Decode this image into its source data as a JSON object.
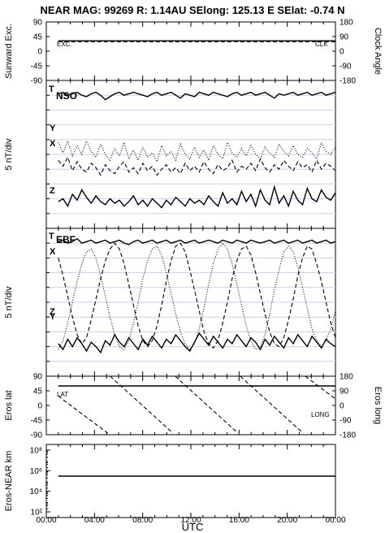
{
  "title": "NEAR MAG: 99269  R: 1.14AU  SElong: 125.13 E  SElat:   -0.74 N",
  "x_axis": {
    "label": "UTC",
    "ticks": [
      "00:00",
      "04:00",
      "08:00",
      "12:00",
      "16:00",
      "20:00",
      "00:00"
    ]
  },
  "chart_data": [
    {
      "id": "sunward",
      "type": "line",
      "ylabel": "Sunward Exc.",
      "ylabel_right": "Clock Angle",
      "yticks_left": [
        "90",
        "45",
        "0",
        "-45",
        "-90"
      ],
      "yticks_right": [
        "180",
        "90",
        "0",
        "-90",
        "-180"
      ],
      "ylim": [
        -90,
        90
      ],
      "series": [
        {
          "name": "EXC.",
          "style": "solid",
          "x": [
            1,
            24
          ],
          "values": [
            32,
            32
          ]
        },
        {
          "name": "CLK",
          "style": "dashed",
          "x": [
            1,
            24
          ],
          "values": [
            29,
            29
          ]
        }
      ]
    },
    {
      "id": "nso",
      "type": "line",
      "frame": "NSO",
      "ylabel": "5 nT/div",
      "series": [
        {
          "name": "T",
          "style": "solid",
          "x_start": 1,
          "x_end": 24,
          "values": [
            9.1,
            9.2,
            9.0,
            9.1,
            9.2,
            9.0,
            8.9,
            9.1,
            9.2,
            9.0,
            8.7,
            8.9,
            9.1,
            9.2,
            9.0,
            9.1,
            9.2,
            9.1,
            9.0,
            8.9,
            9.1,
            9.2,
            9.0,
            9.1,
            9.2,
            9.0,
            8.8,
            9.1,
            9.0,
            8.9,
            9.2,
            9.1,
            9.0,
            9.2,
            9.1,
            9.0,
            8.9,
            9.1,
            9.2,
            9.0,
            9.1,
            9.2,
            9.0,
            9.1,
            9.2,
            9.0,
            8.8,
            9.1,
            9.0,
            9.1,
            9.2,
            9.0,
            9.1,
            9.2,
            9.0,
            9.1,
            9.2,
            9.0,
            9.1,
            9.2
          ]
        },
        {
          "name": "Y",
          "style": "dotted",
          "x_start": 1,
          "x_end": 24,
          "values": [
            5.8,
            5.1,
            5.9,
            4.9,
            5.6,
            5.0,
            5.9,
            5.2,
            4.8,
            5.7,
            5.0,
            4.6,
            5.4,
            4.9,
            5.8,
            4.7,
            5.3,
            4.6,
            5.5,
            4.8,
            5.1,
            4.5,
            5.6,
            4.9,
            5.2,
            4.6,
            5.7,
            5.0,
            4.7,
            5.5,
            4.8,
            5.3,
            4.6,
            5.6,
            5.0,
            4.7,
            5.8,
            5.1,
            4.8,
            5.4,
            4.9,
            5.6,
            5.0,
            4.7,
            5.5,
            5.1,
            4.8,
            5.7,
            5.2,
            4.9,
            5.6,
            5.0,
            4.8,
            5.4,
            5.1,
            4.7,
            5.8,
            5.2,
            5.0,
            5.5
          ]
        },
        {
          "name": "X",
          "style": "dashed",
          "x_start": 1,
          "x_end": 24,
          "values": [
            4.6,
            4.2,
            4.8,
            3.9,
            4.5,
            4.0,
            3.8,
            4.4,
            4.1,
            3.6,
            4.3,
            3.9,
            3.7,
            4.2,
            4.5,
            3.8,
            4.1,
            3.7,
            4.4,
            3.9,
            4.2,
            3.6,
            4.0,
            4.3,
            3.8,
            4.1,
            3.7,
            4.4,
            3.9,
            4.2,
            3.8,
            4.5,
            4.0,
            3.7,
            4.3,
            3.9,
            4.1,
            4.6,
            3.8,
            4.2,
            4.0,
            4.4,
            3.9,
            4.7,
            4.1,
            3.8,
            4.3,
            4.0,
            4.6,
            4.2,
            3.9,
            4.5,
            4.1,
            4.3,
            3.8,
            4.6,
            4.0,
            4.4,
            4.2,
            3.9
          ]
        },
        {
          "name": "Z",
          "style": "solid",
          "x_start": 1,
          "x_end": 24,
          "values": [
            1.8,
            2.0,
            1.5,
            2.3,
            1.9,
            2.6,
            2.1,
            1.7,
            2.2,
            1.8,
            1.6,
            2.0,
            1.7,
            1.9,
            1.5,
            1.8,
            2.2,
            1.6,
            1.9,
            1.5,
            2.0,
            1.7,
            1.4,
            1.9,
            1.6,
            2.1,
            1.8,
            1.5,
            2.0,
            1.7,
            1.9,
            1.6,
            2.2,
            1.8,
            1.5,
            2.4,
            1.7,
            2.0,
            1.6,
            2.5,
            1.8,
            2.3,
            1.5,
            2.6,
            1.9,
            1.6,
            2.8,
            1.7,
            2.2,
            1.5,
            2.5,
            1.9,
            1.6,
            2.7,
            2.0,
            1.8,
            2.6,
            2.1,
            1.9,
            2.4
          ]
        }
      ]
    },
    {
      "id": "ebf",
      "type": "line",
      "frame": "EBF",
      "ylabel": "5 nT/div",
      "series": [
        {
          "name": "T",
          "style": "solid",
          "x_start": 1,
          "x_end": 24,
          "values": [
            9.1,
            9.2,
            9.0,
            9.1,
            9.3,
            9.0,
            9.1,
            9.2,
            9.0,
            9.1,
            9.2,
            9.0,
            9.1,
            9.2,
            9.0,
            8.9,
            9.1,
            9.2,
            9.0,
            9.1,
            9.2,
            9.0,
            9.1,
            9.2,
            9.0,
            9.1,
            9.2,
            9.0,
            9.1,
            9.2,
            9.0,
            9.1,
            9.2,
            9.1,
            9.0,
            9.2,
            9.1,
            9.0,
            9.2,
            9.1,
            9.0,
            9.2,
            9.1,
            9.0,
            9.1,
            9.2,
            9.0,
            9.1,
            9.2,
            9.0,
            9.1,
            9.2,
            9.0,
            9.1,
            9.2,
            9.0,
            9.1,
            9.2,
            9.0,
            9.1
          ]
        },
        {
          "name": "X",
          "style": "dashed",
          "x_start": 1,
          "x_end": 24,
          "values": [
            8.0,
            6.8,
            5.4,
            4.0,
            2.8,
            2.2,
            2.6,
            3.8,
            5.2,
            6.6,
            7.8,
            8.6,
            9.0,
            8.6,
            7.6,
            6.2,
            4.8,
            3.4,
            2.4,
            2.0,
            2.4,
            3.4,
            4.8,
            6.4,
            7.8,
            8.8,
            9.0,
            8.4,
            7.2,
            5.8,
            4.4,
            3.0,
            2.2,
            1.9,
            2.4,
            3.6,
            5.0,
            6.6,
            7.8,
            8.6,
            8.8,
            8.2,
            7.0,
            5.6,
            4.2,
            3.0,
            2.2,
            2.0,
            2.6,
            3.8,
            5.2,
            6.8,
            8.0,
            8.8,
            8.6,
            7.6,
            6.4,
            5.0,
            3.6,
            2.6
          ]
        },
        {
          "name": "Y",
          "style": "dotted",
          "x_start": 1,
          "x_end": 24,
          "values": [
            1.8,
            2.4,
            3.6,
            5.0,
            6.4,
            7.6,
            8.4,
            8.6,
            8.0,
            6.8,
            5.4,
            4.0,
            2.8,
            2.0,
            1.8,
            2.4,
            3.6,
            5.0,
            6.6,
            7.8,
            8.6,
            8.8,
            8.2,
            7.0,
            5.6,
            4.2,
            3.0,
            2.2,
            1.8,
            2.2,
            3.2,
            4.6,
            6.2,
            7.6,
            8.6,
            9.0,
            8.6,
            7.6,
            6.2,
            4.8,
            3.4,
            2.4,
            1.8,
            2.0,
            2.8,
            4.2,
            5.8,
            7.2,
            8.4,
            8.8,
            8.4,
            7.4,
            6.0,
            4.6,
            3.2,
            2.4,
            2.0,
            2.4,
            3.2,
            4.4
          ]
        },
        {
          "name": "Z",
          "style": "solid",
          "x_start": 1,
          "x_end": 24,
          "values": [
            2.2,
            1.8,
            2.5,
            2.0,
            2.6,
            2.2,
            1.7,
            2.3,
            2.0,
            1.6,
            2.4,
            2.1,
            2.8,
            2.3,
            2.0,
            2.6,
            2.2,
            1.8,
            2.5,
            2.1,
            2.7,
            2.3,
            1.9,
            2.5,
            2.2,
            2.8,
            2.4,
            2.0,
            1.7,
            2.3,
            2.9,
            2.5,
            2.1,
            2.7,
            2.3,
            1.9,
            2.5,
            2.2,
            2.8,
            2.4,
            2.0,
            2.6,
            2.3,
            1.8,
            2.5,
            2.1,
            2.7,
            2.3,
            1.9,
            2.6,
            2.2,
            2.8,
            2.4,
            2.0,
            2.7,
            2.3,
            1.9,
            2.5,
            2.2,
            2.0
          ]
        }
      ]
    },
    {
      "id": "eros_angles",
      "type": "line",
      "ylabel": "Eros lat",
      "ylabel_right": "Eros long",
      "yticks_left": [
        "90",
        "45",
        "0",
        "-45",
        "-90"
      ],
      "yticks_right": [
        "180",
        "90",
        "0",
        "-90",
        "-180"
      ],
      "ylim": [
        -90,
        90
      ],
      "series": [
        {
          "name": "LAT",
          "style": "solid",
          "x": [
            1,
            24
          ],
          "values": [
            60,
            60
          ]
        },
        {
          "name": "LONG",
          "style": "dashed",
          "x": [
            1,
            1.3,
            5.1,
            5.3,
            10.5,
            10.7,
            15.9,
            16.1,
            21.3,
            21.5,
            24
          ],
          "lon_values": [
            60,
            40,
            -170,
            180,
            -170,
            180,
            -170,
            180,
            -170,
            180,
            40
          ]
        }
      ]
    },
    {
      "id": "eros_distance",
      "type": "line",
      "ylabel": "Eros-NEAR km",
      "yscale": "log",
      "yticks_left": [
        "10⁸",
        "10⁶",
        "10⁴",
        "10²"
      ],
      "ylim": [
        100,
        100000000
      ],
      "series": [
        {
          "name": "",
          "style": "solid",
          "x": [
            1,
            24
          ],
          "values": [
            300000,
            300000
          ]
        }
      ]
    }
  ]
}
